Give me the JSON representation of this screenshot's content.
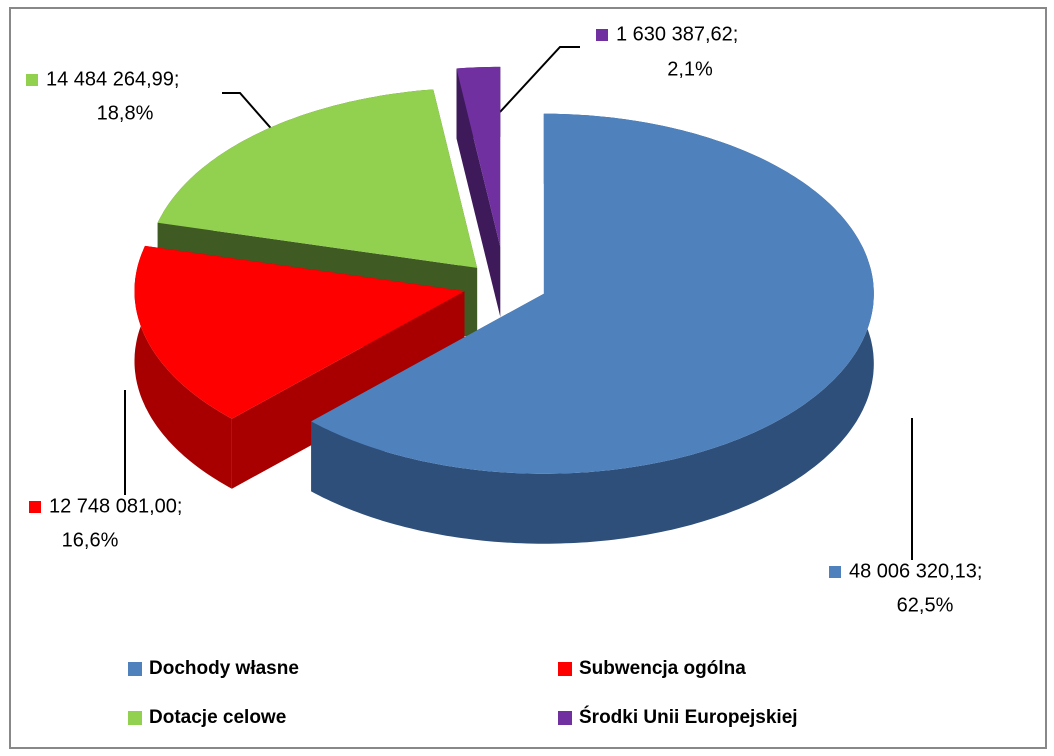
{
  "chart_data": {
    "type": "pie3d",
    "categories": [
      "Dochody własne",
      "Subwencja ogólna",
      "Dotacje celowe",
      "Środki Unii Europejskiej"
    ],
    "values": [
      48006320.13,
      12748081.0,
      14484264.99,
      1630387.62
    ],
    "value_labels": [
      "48 006 320,13;",
      "12 748 081,00;",
      "14 484 264,99;",
      "1 630 387,62;"
    ],
    "percents": [
      62.5,
      16.6,
      18.8,
      2.1
    ],
    "percent_labels": [
      "62,5%",
      "16,6%",
      "18,8%",
      "2,1%"
    ],
    "colors": [
      "#4f81bd",
      "#ff0000",
      "#92d050",
      "#7030a0"
    ],
    "side_colors": [
      "#2d4f7a",
      "#a80000",
      "#3f5a22",
      "#3e1a5a"
    ],
    "legend": "bottom"
  }
}
